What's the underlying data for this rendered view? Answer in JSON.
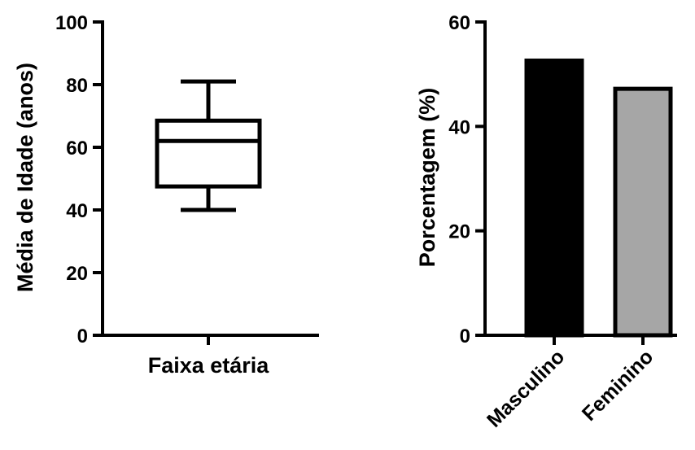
{
  "chart_data": [
    {
      "type": "box",
      "ylabel": "Média de Idade (anos)",
      "xlabel": "Faixa etária",
      "categories": [
        ""
      ],
      "ylim": [
        0,
        100
      ],
      "yticks": [
        0,
        20,
        40,
        60,
        80,
        100
      ],
      "box": {
        "min": 40,
        "q1": 47.5,
        "median": 62,
        "q3": 68.5,
        "max": 81
      },
      "grid": false
    },
    {
      "type": "bar",
      "ylabel": "Porcentagem (%)",
      "xlabel": "",
      "categories": [
        "Masculino",
        "Feminino"
      ],
      "values": [
        52.6,
        47.2
      ],
      "colors": [
        "#000000",
        "#a6a6a6"
      ],
      "ylim": [
        0,
        60
      ],
      "yticks": [
        0,
        20,
        40,
        60
      ],
      "grid": false
    }
  ]
}
